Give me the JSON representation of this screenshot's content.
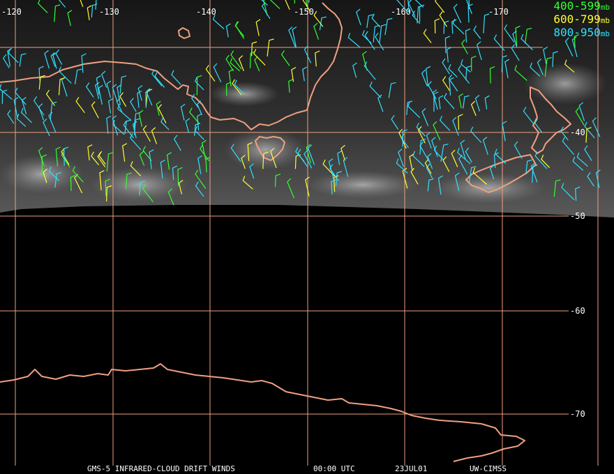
{
  "map": {
    "lon_labels": [
      "-120",
      "-130",
      "-140",
      "-150",
      "-160",
      "-170"
    ],
    "lat_labels": [
      "-40",
      "-50",
      "-60",
      "-70"
    ],
    "grid_color": "#f0a080",
    "coast_color": "#f0a080",
    "ocean_color": "#000000"
  },
  "legend": {
    "items": [
      {
        "range": "400-599",
        "unit": "mb",
        "color": "#33ff33"
      },
      {
        "range": "600-799",
        "unit": "mb",
        "color": "#ffff33"
      },
      {
        "range": "800-950",
        "unit": "mb",
        "color": "#33e0ff"
      }
    ]
  },
  "footer": {
    "product": "GMS-5 INFRARED-CLOUD DRIFT WINDS",
    "time": "00:00 UTC",
    "date": "23JUL01",
    "source": "UW-CIMSS"
  }
}
